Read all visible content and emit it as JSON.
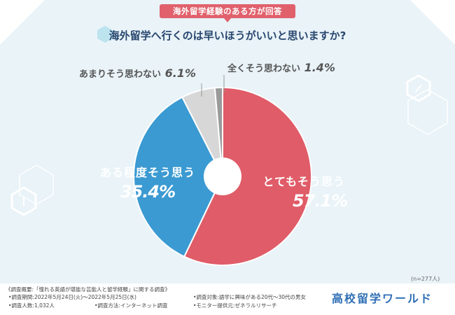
{
  "header": {
    "tag": "海外留学経験のある方が回答",
    "question": "海外留学へ行くのは早いほうがいいと思いますか?"
  },
  "chart_data": {
    "type": "pie",
    "title": "海外留学へ行くのは早いほうがいいと思いますか?",
    "slices": [
      {
        "label": "とてもそう思う",
        "value": 57.1,
        "display": "57.1%",
        "color": "#e05c68"
      },
      {
        "label": "ある程度そう思う",
        "value": 35.4,
        "display": "35.4%",
        "color": "#3b9ad2"
      },
      {
        "label": "あまりそう思わない",
        "value": 6.1,
        "display": "6.1%",
        "color": "#d7d7d7"
      },
      {
        "label": "全くそう思わない",
        "value": 1.4,
        "display": "1.4%",
        "color": "#9a9a9a"
      }
    ],
    "sample_note": "(n=277人)"
  },
  "footer": {
    "line1": "《調査概要:「憧れる英語が堪能な芸能人と留学経験」に関する調査》",
    "period": "•調査期間:2022年5月24日(火)〜2022年5月25日(水)",
    "count": "•調査人数:1,032人",
    "target": "•調査対象:語学に興味がある20代〜30代の男女",
    "method": "•調査方法:インターネット調査",
    "provider": "•モニター提供元:ゼネラルリサーチ",
    "logo": "高校留学ワールド"
  }
}
